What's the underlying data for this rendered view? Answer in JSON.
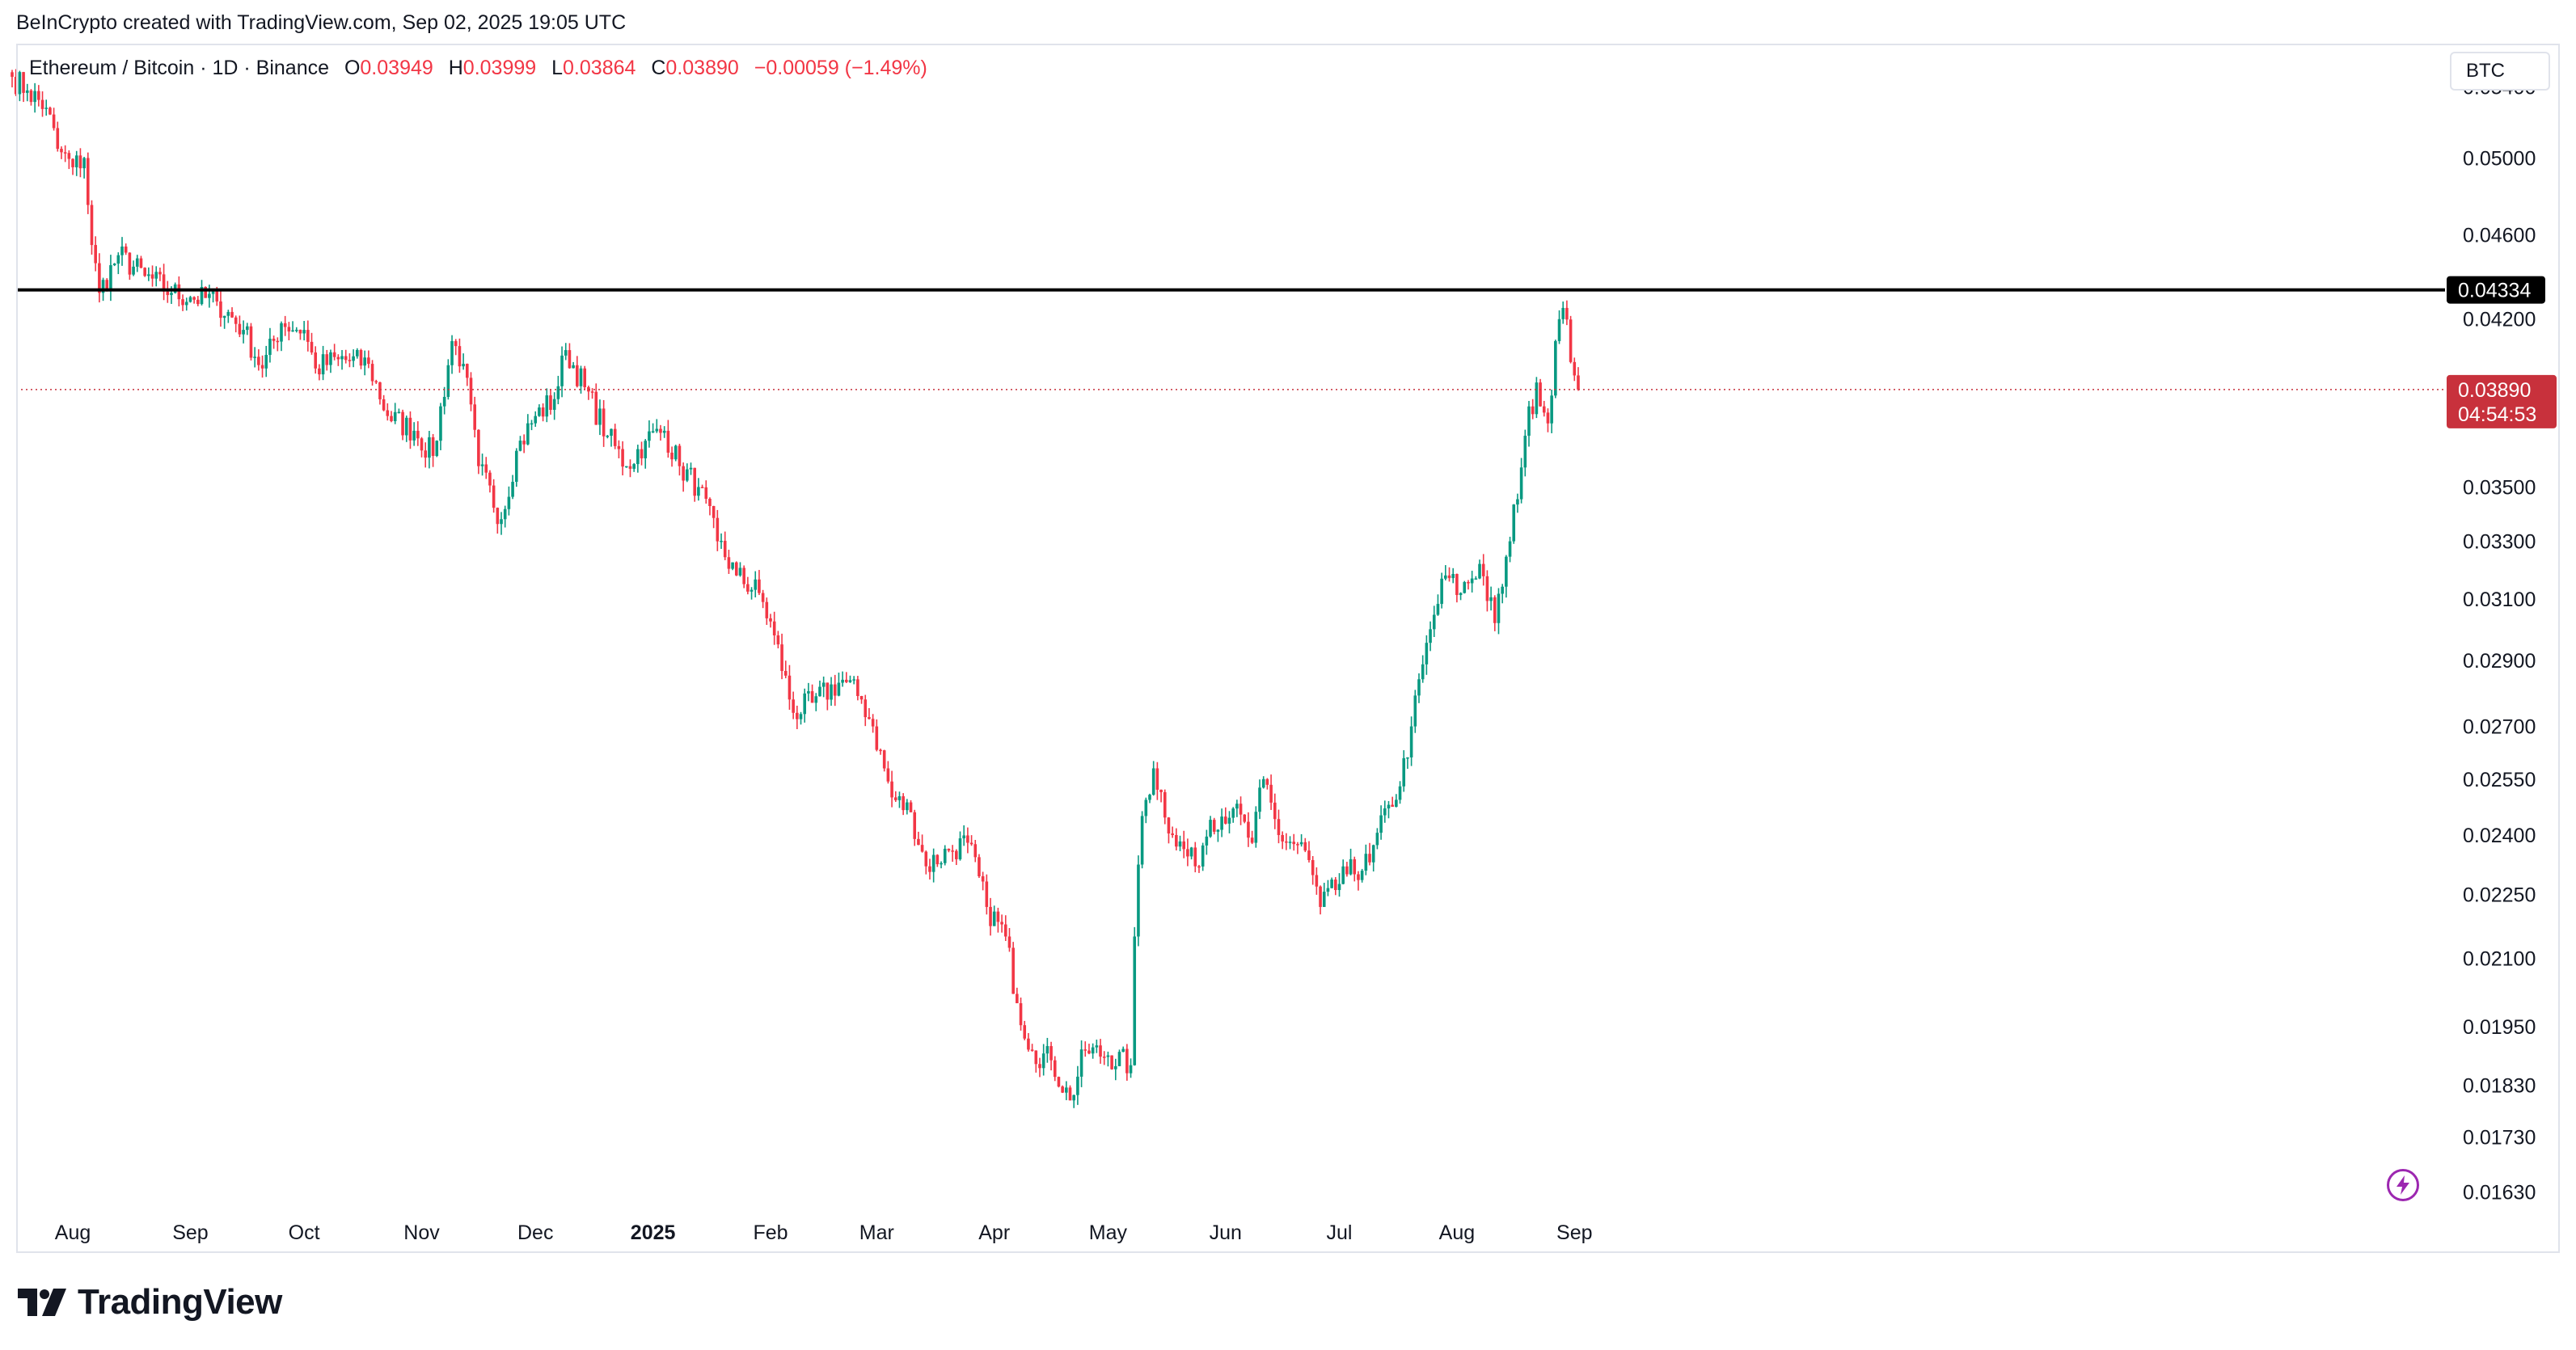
{
  "header": {
    "credit": "BeInCrypto created with TradingView.com, Sep 02, 2025 19:05 UTC"
  },
  "legend": {
    "symbol": "Ethereum / Bitcoin · 1D · Binance",
    "o_label": "O",
    "o_value": "0.03949",
    "h_label": "H",
    "h_value": "0.03999",
    "l_label": "L",
    "l_value": "0.03864",
    "c_label": "C",
    "c_value": "0.03890",
    "change": "−0.00059 (−1.49%)"
  },
  "currency_button": "BTC",
  "price_tags": {
    "level": "0.04334",
    "last_price": "0.03890",
    "countdown": "04:54:53"
  },
  "footer": {
    "brand": "TradingView"
  },
  "colors": {
    "up": "#089981",
    "down": "#f23645",
    "level_line": "#000000",
    "last_price": "#c8313c"
  },
  "chart_data": {
    "type": "candlestick",
    "title": "Ethereum / Bitcoin · 1D · Binance",
    "y_scale": "log",
    "ylim": [
      0.0158,
      0.0565
    ],
    "y_ticks": [
      "0.05400",
      "0.05000",
      "0.04600",
      "0.04200",
      "0.03500",
      "0.03300",
      "0.03100",
      "0.02900",
      "0.02700",
      "0.02550",
      "0.02400",
      "0.02250",
      "0.02100",
      "0.01950",
      "0.01830",
      "0.01730",
      "0.01630"
    ],
    "x_ticks": [
      "Aug",
      "Sep",
      "Oct",
      "Nov",
      "Dec",
      "2025",
      "Feb",
      "Mar",
      "Apr",
      "May",
      "Jun",
      "Jul",
      "Aug",
      "Sep"
    ],
    "x_tick_dates": [
      "2024-08-01",
      "2024-09-01",
      "2024-10-01",
      "2024-11-01",
      "2024-12-01",
      "2025-01-01",
      "2025-02-01",
      "2025-03-01",
      "2025-04-01",
      "2025-05-01",
      "2025-06-01",
      "2025-07-01",
      "2025-08-01",
      "2025-09-01"
    ],
    "date_range": [
      "2024-07-16",
      "2025-09-02"
    ],
    "horizontal_level": 0.04334,
    "last_close": 0.0389,
    "close_anchors": [
      [
        "2024-07-16",
        0.0546
      ],
      [
        "2024-07-20",
        0.0538
      ],
      [
        "2024-07-25",
        0.0528
      ],
      [
        "2024-07-28",
        0.0505
      ],
      [
        "2024-08-01",
        0.0495
      ],
      [
        "2024-08-04",
        0.05
      ],
      [
        "2024-08-06",
        0.0455
      ],
      [
        "2024-08-08",
        0.0432
      ],
      [
        "2024-08-13",
        0.045
      ],
      [
        "2024-08-20",
        0.044
      ],
      [
        "2024-08-27",
        0.0432
      ],
      [
        "2024-09-01",
        0.043
      ],
      [
        "2024-09-08",
        0.0428
      ],
      [
        "2024-09-15",
        0.0415
      ],
      [
        "2024-09-20",
        0.0398
      ],
      [
        "2024-09-25",
        0.0418
      ],
      [
        "2024-10-01",
        0.0415
      ],
      [
        "2024-10-04",
        0.0398
      ],
      [
        "2024-10-10",
        0.0402
      ],
      [
        "2024-10-18",
        0.04
      ],
      [
        "2024-10-23",
        0.0378
      ],
      [
        "2024-10-30",
        0.0372
      ],
      [
        "2024-11-04",
        0.0362
      ],
      [
        "2024-11-09",
        0.041
      ],
      [
        "2024-11-12",
        0.04
      ],
      [
        "2024-11-16",
        0.0358
      ],
      [
        "2024-11-22",
        0.0338
      ],
      [
        "2024-11-26",
        0.0364
      ],
      [
        "2024-12-01",
        0.0378
      ],
      [
        "2024-12-06",
        0.0385
      ],
      [
        "2024-12-09",
        0.0406
      ],
      [
        "2024-12-14",
        0.039
      ],
      [
        "2024-12-20",
        0.037
      ],
      [
        "2024-12-25",
        0.0358
      ],
      [
        "2024-12-30",
        0.0368
      ],
      [
        "2025-01-04",
        0.0372
      ],
      [
        "2025-01-08",
        0.0358
      ],
      [
        "2025-01-13",
        0.035
      ],
      [
        "2025-01-18",
        0.033
      ],
      [
        "2025-01-23",
        0.0318
      ],
      [
        "2025-01-29",
        0.0312
      ],
      [
        "2025-02-02",
        0.0298
      ],
      [
        "2025-02-07",
        0.0274
      ],
      [
        "2025-02-12",
        0.0277
      ],
      [
        "2025-02-20",
        0.0284
      ],
      [
        "2025-02-25",
        0.0278
      ],
      [
        "2025-02-28",
        0.027
      ],
      [
        "2025-03-05",
        0.025
      ],
      [
        "2025-03-10",
        0.0246
      ],
      [
        "2025-03-14",
        0.0232
      ],
      [
        "2025-03-20",
        0.0236
      ],
      [
        "2025-03-25",
        0.0238
      ],
      [
        "2025-03-30",
        0.0222
      ],
      [
        "2025-04-04",
        0.0215
      ],
      [
        "2025-04-07",
        0.02
      ],
      [
        "2025-04-11",
        0.019
      ],
      [
        "2025-04-16",
        0.0188
      ],
      [
        "2025-04-21",
        0.018
      ],
      [
        "2025-04-25",
        0.019
      ],
      [
        "2025-05-01",
        0.0189
      ],
      [
        "2025-05-07",
        0.0187
      ],
      [
        "2025-05-08",
        0.0215
      ],
      [
        "2025-05-10",
        0.0245
      ],
      [
        "2025-05-13",
        0.0258
      ],
      [
        "2025-05-18",
        0.024
      ],
      [
        "2025-05-24",
        0.0232
      ],
      [
        "2025-05-28",
        0.0244
      ],
      [
        "2025-06-03",
        0.0247
      ],
      [
        "2025-06-08",
        0.0238
      ],
      [
        "2025-06-11",
        0.0255
      ],
      [
        "2025-06-15",
        0.024
      ],
      [
        "2025-06-22",
        0.0236
      ],
      [
        "2025-06-26",
        0.0222
      ],
      [
        "2025-07-03",
        0.023
      ],
      [
        "2025-07-09",
        0.0233
      ],
      [
        "2025-07-14",
        0.0248
      ],
      [
        "2025-07-17",
        0.0253
      ],
      [
        "2025-07-20",
        0.027
      ],
      [
        "2025-07-25",
        0.03
      ],
      [
        "2025-07-29",
        0.0318
      ],
      [
        "2025-08-02",
        0.0312
      ],
      [
        "2025-08-07",
        0.0322
      ],
      [
        "2025-08-11",
        0.0302
      ],
      [
        "2025-08-15",
        0.033
      ],
      [
        "2025-08-19",
        0.037
      ],
      [
        "2025-08-22",
        0.0392
      ],
      [
        "2025-08-25",
        0.0375
      ],
      [
        "2025-08-27",
        0.041
      ],
      [
        "2025-08-29",
        0.0425
      ],
      [
        "2025-09-01",
        0.0395
      ],
      [
        "2025-09-02",
        0.0389
      ]
    ]
  }
}
